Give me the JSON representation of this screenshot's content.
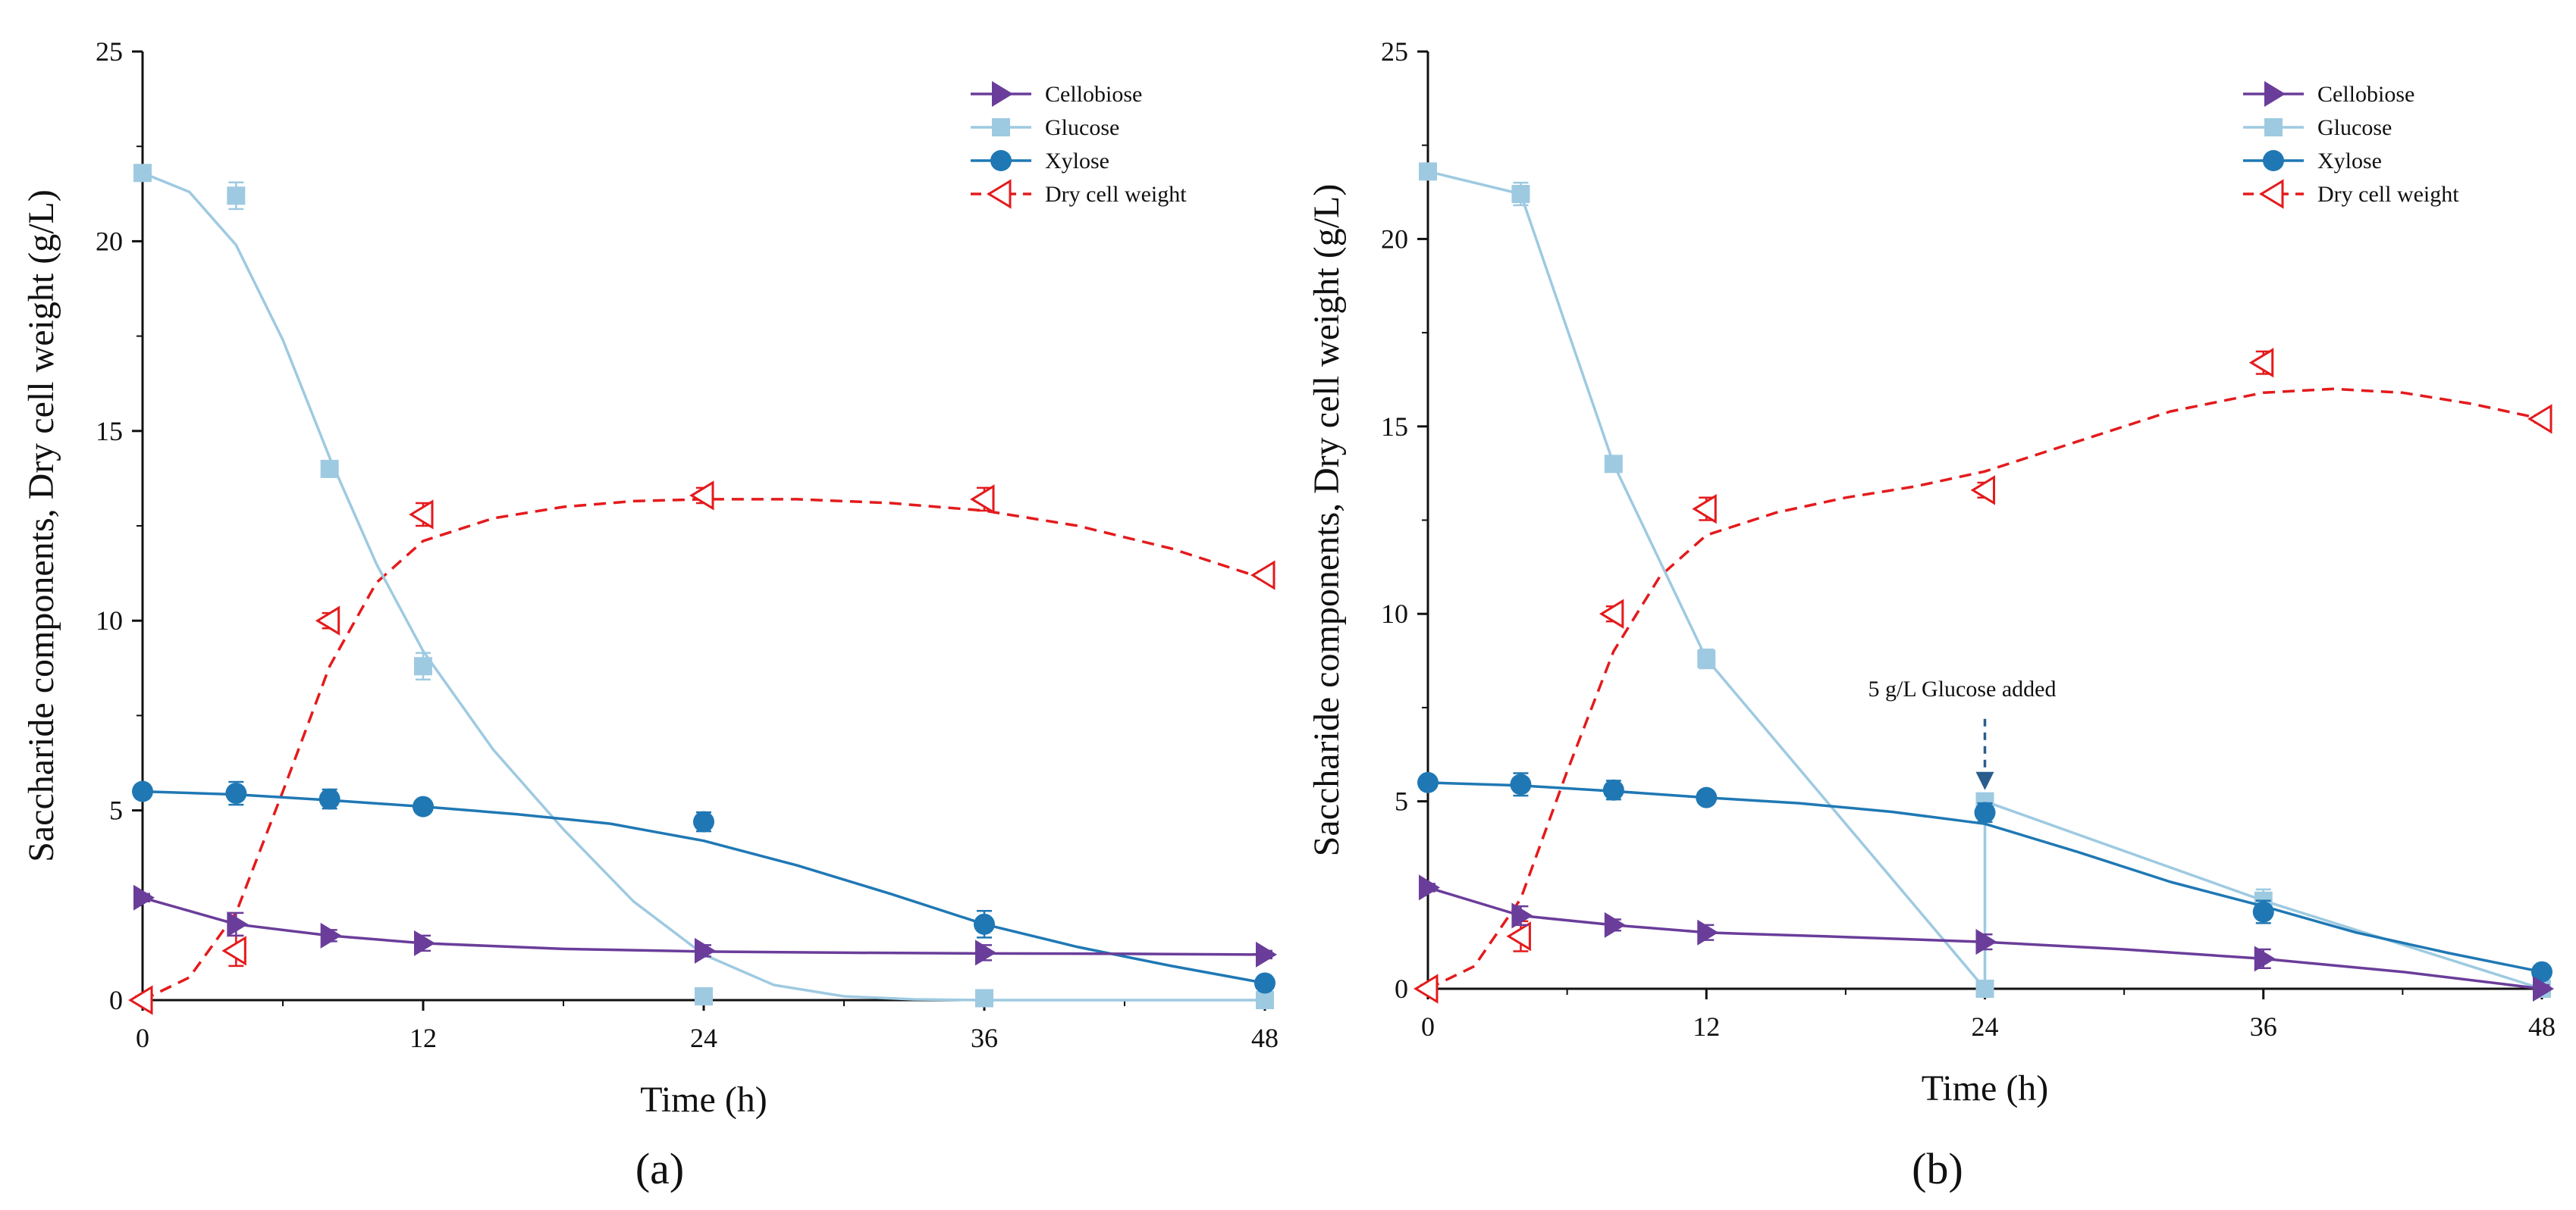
{
  "colors": {
    "cellobiose": "#6a3d9a",
    "glucose": "#9ecae1",
    "xylose": "#1f78b4",
    "dcw": "#e41a1c",
    "axis": "#111111",
    "annotation_arrow": "#2b5d8c"
  },
  "chart_data": [
    {
      "type": "line",
      "panel_label": "(a)",
      "xlabel": "Time (h)",
      "ylabel": "Saccharide components, Dry cell weight (g/L)",
      "xlim": [
        0,
        48
      ],
      "ylim": [
        0,
        25
      ],
      "xticks": [
        0,
        12,
        24,
        36,
        48
      ],
      "yticks": [
        0,
        5,
        10,
        15,
        20,
        25
      ],
      "legend_position": "top-right",
      "legend": [
        "Cellobiose",
        "Glucose",
        "Xylose",
        "Dry cell  weight"
      ],
      "series": [
        {
          "name": "Cellobiose",
          "key": "cellobiose",
          "marker": "triangle-right",
          "x": [
            0,
            4,
            8,
            12,
            24,
            36,
            48
          ],
          "y": [
            2.7,
            2.0,
            1.7,
            1.5,
            1.3,
            1.25,
            1.2
          ],
          "err": [
            0.1,
            0.3,
            0.15,
            0.2,
            0.15,
            0.2,
            0.1
          ],
          "fit_x": [
            0,
            4,
            8,
            12,
            18,
            24,
            30,
            36,
            42,
            48
          ],
          "fit_y": [
            2.7,
            2.0,
            1.7,
            1.5,
            1.35,
            1.28,
            1.25,
            1.23,
            1.22,
            1.2
          ],
          "dashed": false
        },
        {
          "name": "Glucose",
          "key": "glucose",
          "marker": "square",
          "x": [
            0,
            4,
            8,
            12,
            24,
            36,
            48
          ],
          "y": [
            21.8,
            21.2,
            14.0,
            8.8,
            0.1,
            0.05,
            0.0
          ],
          "err": [
            0.2,
            0.35,
            0.2,
            0.35,
            0.1,
            0.2,
            0.1
          ],
          "fit_x": [
            0,
            2,
            4,
            6,
            8,
            10,
            12,
            15,
            18,
            21,
            24,
            27,
            30,
            33,
            36,
            48
          ],
          "fit_y": [
            21.8,
            21.3,
            19.9,
            17.4,
            14.3,
            11.5,
            9.2,
            6.6,
            4.5,
            2.6,
            1.2,
            0.4,
            0.1,
            0.02,
            0.0,
            0.0
          ],
          "dashed": false
        },
        {
          "name": "Xylose",
          "key": "xylose",
          "marker": "circle",
          "x": [
            0,
            4,
            8,
            12,
            24,
            36,
            48
          ],
          "y": [
            5.5,
            5.45,
            5.3,
            5.1,
            4.7,
            2.0,
            0.45
          ],
          "err": [
            0.1,
            0.3,
            0.25,
            0.1,
            0.25,
            0.35,
            0.1
          ],
          "fit_x": [
            0,
            4,
            8,
            12,
            16,
            20,
            24,
            28,
            32,
            36,
            40,
            44,
            48
          ],
          "fit_y": [
            5.5,
            5.42,
            5.27,
            5.1,
            4.9,
            4.65,
            4.2,
            3.55,
            2.8,
            2.0,
            1.4,
            0.9,
            0.45
          ],
          "dashed": false
        },
        {
          "name": "Dry cell  weight",
          "key": "dcw",
          "marker": "triangle-left-open",
          "x": [
            0,
            4,
            8,
            12,
            24,
            36,
            48
          ],
          "y": [
            0.0,
            1.3,
            10.0,
            12.8,
            13.3,
            13.2,
            11.2
          ],
          "err": [
            0.1,
            0.4,
            0.2,
            0.3,
            0.2,
            0.3,
            0.1
          ],
          "fit_x": [
            0,
            2,
            4,
            6,
            8,
            10,
            12,
            15,
            18,
            21,
            24,
            28,
            32,
            36,
            40,
            44,
            48
          ],
          "fit_y": [
            0.0,
            0.6,
            2.3,
            5.5,
            8.8,
            11.0,
            12.1,
            12.7,
            13.0,
            13.15,
            13.2,
            13.2,
            13.1,
            12.9,
            12.5,
            11.9,
            11.1
          ],
          "dashed": true
        }
      ]
    },
    {
      "type": "line",
      "panel_label": "(b)",
      "xlabel": "Time (h)",
      "ylabel": "Saccharide components, Dry cell weight (g/L)",
      "xlim": [
        0,
        48
      ],
      "ylim": [
        0,
        25
      ],
      "xticks": [
        0,
        12,
        24,
        36,
        48
      ],
      "yticks": [
        0,
        5,
        10,
        15,
        20,
        25
      ],
      "legend_position": "top-right",
      "legend": [
        "Cellobiose",
        "Glucose",
        "Xylose",
        "Dry cell  weight"
      ],
      "annotation": {
        "text": "5 g/L Glucose added",
        "x": 24,
        "y_text": 8.0,
        "y_arrow_start": 7.2,
        "y_arrow_end": 5.3
      },
      "series": [
        {
          "name": "Cellobiose",
          "key": "cellobiose",
          "marker": "triangle-right",
          "x": [
            0,
            4,
            8,
            12,
            24,
            36,
            48
          ],
          "y": [
            2.7,
            1.95,
            1.7,
            1.5,
            1.25,
            0.8,
            0.0
          ],
          "err": [
            0.1,
            0.25,
            0.15,
            0.2,
            0.2,
            0.25,
            0.1
          ],
          "fit_x": [
            0,
            4,
            8,
            12,
            18,
            24,
            30,
            36,
            42,
            48
          ],
          "fit_y": [
            2.7,
            1.95,
            1.7,
            1.5,
            1.38,
            1.25,
            1.05,
            0.8,
            0.45,
            0.0
          ],
          "dashed": false
        },
        {
          "name": "Glucose",
          "key": "glucose",
          "marker": "square",
          "x": [
            0,
            4,
            8,
            12,
            24,
            24,
            36,
            48
          ],
          "y": [
            21.8,
            21.2,
            14.0,
            8.8,
            0.0,
            5.0,
            2.35,
            0.0
          ],
          "err": [
            0.15,
            0.3,
            0.15,
            0.25,
            0.1,
            0.15,
            0.3,
            0.1
          ],
          "fit_x": [
            0,
            4,
            8,
            12,
            24,
            24,
            36,
            48
          ],
          "fit_y": [
            21.8,
            21.2,
            14.0,
            8.8,
            0.0,
            5.0,
            2.35,
            0.0
          ],
          "dashed": false
        },
        {
          "name": "Xylose",
          "key": "xylose",
          "marker": "circle",
          "x": [
            0,
            4,
            8,
            12,
            24,
            36,
            48
          ],
          "y": [
            5.5,
            5.45,
            5.3,
            5.1,
            4.7,
            2.05,
            0.45
          ],
          "err": [
            0.1,
            0.3,
            0.25,
            0.1,
            0.25,
            0.3,
            0.1
          ],
          "fit_x": [
            0,
            4,
            8,
            12,
            16,
            20,
            24,
            28,
            32,
            36,
            40,
            44,
            48
          ],
          "fit_y": [
            5.5,
            5.42,
            5.27,
            5.1,
            4.95,
            4.72,
            4.4,
            3.65,
            2.85,
            2.2,
            1.5,
            0.95,
            0.45
          ],
          "dashed": false
        },
        {
          "name": "Dry cell  weight",
          "key": "dcw",
          "marker": "triangle-left-open",
          "x": [
            0,
            4,
            8,
            12,
            24,
            36,
            48
          ],
          "y": [
            0.0,
            1.4,
            10.0,
            12.8,
            13.3,
            16.7,
            15.2
          ],
          "err": [
            0.1,
            0.4,
            0.2,
            0.3,
            0.2,
            0.3,
            0.1
          ],
          "fit_x": [
            0,
            2,
            4,
            6,
            8,
            10,
            12,
            15,
            18,
            21,
            24,
            28,
            32,
            36,
            39,
            42,
            45,
            48
          ],
          "fit_y": [
            0.0,
            0.6,
            2.4,
            5.8,
            9.0,
            11.0,
            12.1,
            12.7,
            13.1,
            13.4,
            13.8,
            14.6,
            15.4,
            15.9,
            16.0,
            15.9,
            15.6,
            15.2
          ],
          "dashed": true
        }
      ]
    }
  ]
}
